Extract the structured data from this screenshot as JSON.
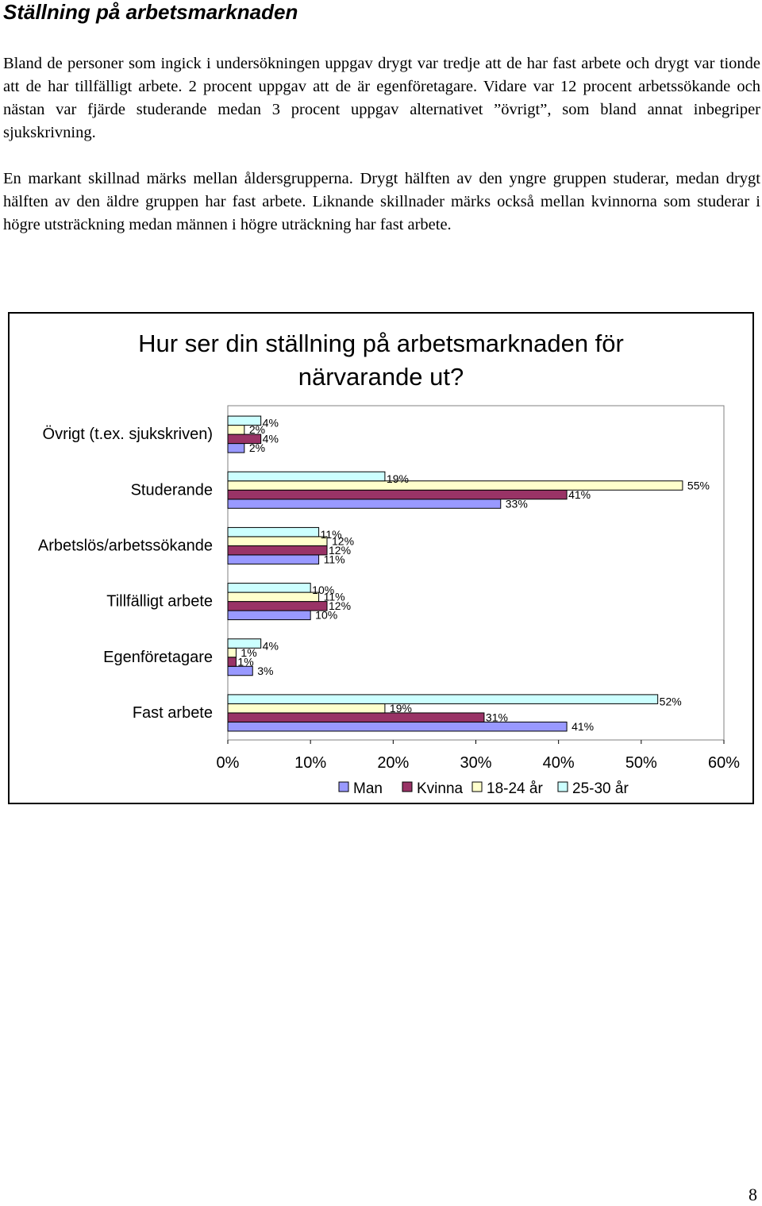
{
  "section_title": "Ställning på arbetsmarknaden",
  "paragraphs": [
    "Bland de personer som ingick i undersökningen uppgav drygt var tredje att de har fast arbete och drygt var tionde att de har tillfälligt arbete. 2 procent uppgav att de är egenföretagare. Vidare var 12 procent arbetssökande och nästan var fjärde studerande medan 3 procent uppgav alternativet ”övrigt”, som bland annat inbegriper sjukskrivning.",
    "En markant skillnad märks mellan åldersgrupperna. Drygt hälften av den yngre gruppen studerar, medan drygt hälften av den äldre gruppen har fast arbete. Liknande skillnader märks också mellan kvinnorna som studerar i högre utsträckning medan männen i högre uträckning har fast arbete."
  ],
  "chart_data": {
    "type": "bar",
    "orientation": "horizontal",
    "title_lines": [
      "Hur ser din ställning på arbetsmarknaden för",
      "närvarande ut?"
    ],
    "categories": [
      "Övrigt (t.ex. sjukskriven)",
      "Studerande",
      "Arbetslös/arbetssökande",
      "Tillfälligt arbete",
      "Egenföretagare",
      "Fast arbete"
    ],
    "series": [
      {
        "name": "Man",
        "color": "#9999ff",
        "values": [
          2,
          33,
          11,
          10,
          3,
          41
        ]
      },
      {
        "name": "Kvinna",
        "color": "#993366",
        "values": [
          4,
          41,
          12,
          12,
          1,
          31
        ]
      },
      {
        "name": "18-24 år",
        "color": "#ffffcc",
        "values": [
          2,
          55,
          12,
          11,
          1,
          19
        ]
      },
      {
        "name": "25-30 år",
        "color": "#ccffff",
        "values": [
          4,
          19,
          11,
          10,
          4,
          52
        ]
      }
    ],
    "value_labels": [
      [
        "2%",
        "4%",
        "2%",
        "4%"
      ],
      [
        "33%",
        "41%",
        "55%",
        "19%"
      ],
      [
        "11%",
        "12%",
        "12%",
        "11%"
      ],
      [
        "10%",
        "12%",
        "11%",
        "10%"
      ],
      [
        "3%",
        "1%",
        "1%",
        "4%"
      ],
      [
        "41%",
        "31%",
        "19%",
        "52%"
      ]
    ],
    "x_ticks": [
      "0%",
      "10%",
      "20%",
      "30%",
      "40%",
      "50%",
      "60%"
    ],
    "xlim": [
      0,
      60
    ],
    "legend": [
      "Man",
      "Kvinna",
      "18-24 år",
      "25-30 år"
    ],
    "legend_position": "bottom",
    "grid": false
  },
  "page_number": "8"
}
